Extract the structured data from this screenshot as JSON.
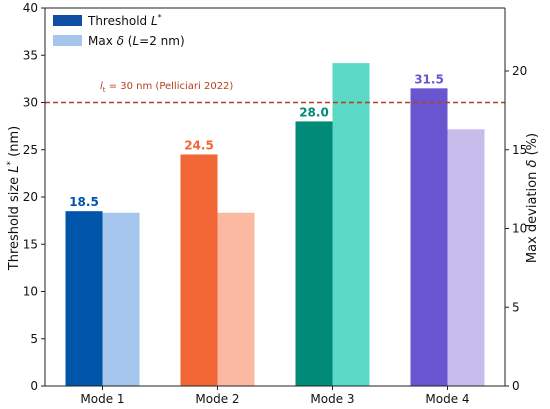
{
  "chart_data": {
    "type": "bar",
    "categories": [
      "Mode 1",
      "Mode 2",
      "Mode 3",
      "Mode 4"
    ],
    "series": [
      {
        "name": "Threshold L*",
        "legend_main": "Threshold ",
        "legend_sym": "L",
        "legend_sup": "*",
        "axis": "left",
        "values": [
          18.5,
          24.5,
          28.0,
          31.5
        ],
        "labels": [
          "18.5",
          "24.5",
          "28.0",
          "31.5"
        ],
        "colors": [
          "#0055aa",
          "#f26535",
          "#008a78",
          "#6a55d0"
        ]
      },
      {
        "name": "Max δ (L=2 nm)",
        "legend_main": "Max ",
        "legend_sym": "δ",
        "legend_rest": " (",
        "legend_sym2": "L",
        "legend_tail": "=2 nm)",
        "axis": "right",
        "values": [
          11.0,
          11.0,
          20.5,
          16.3
        ],
        "colors": [
          "#a4c6ec",
          "#fbb9a2",
          "#5cd8c6",
          "#c7bdec"
        ]
      }
    ],
    "legend_colors": [
      "#0f4ea2",
      "#a4c6ec"
    ],
    "ylabel_left": "Threshold size L* (nm)",
    "ylabel_left_main": "Threshold size ",
    "ylabel_left_sym": "L",
    "ylabel_left_sup": "*",
    "ylabel_left_unit": " (nm)",
    "ylabel_right": "Max deviation δ (%)",
    "ylabel_right_main": "Max deviation ",
    "ylabel_right_sym": "δ",
    "ylabel_right_unit": " (%)",
    "ylim_left": [
      0,
      40
    ],
    "yticks_left": [
      0,
      5,
      10,
      15,
      20,
      25,
      30,
      35,
      40
    ],
    "ylim_right": [
      0,
      24
    ],
    "yticks_right": [
      0,
      5,
      10,
      15,
      20
    ],
    "reference_line": {
      "value": 30,
      "label_sym": "l",
      "label_sub": "t",
      "label_text": " = 30 nm (Pelliciari 2022)",
      "color": "#b5401c"
    },
    "legend_position": "upper-left",
    "grid": false
  }
}
